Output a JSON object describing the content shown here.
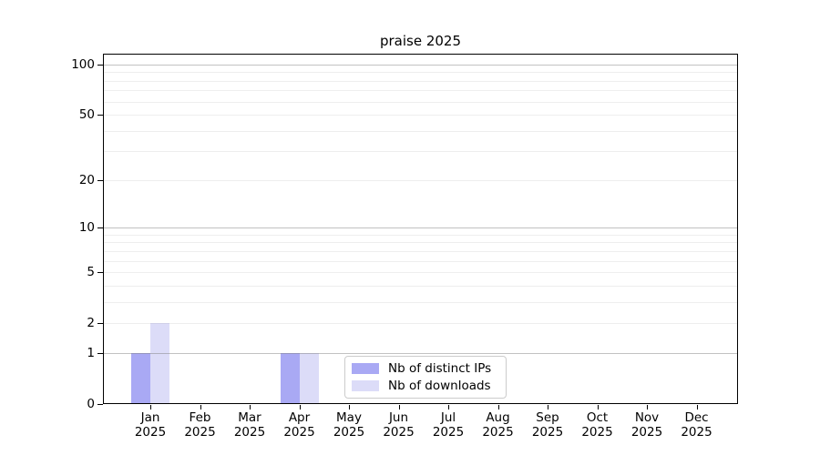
{
  "figure": {
    "title": "praise 2025",
    "background": "#ffffff"
  },
  "chart_data": {
    "type": "bar",
    "title": "praise 2025",
    "scale": "log1p",
    "grid": true,
    "legend_position": "lower center",
    "categories": [
      {
        "label": "Jan",
        "sublabel": "2025"
      },
      {
        "label": "Feb",
        "sublabel": "2025"
      },
      {
        "label": "Mar",
        "sublabel": "2025"
      },
      {
        "label": "Apr",
        "sublabel": "2025"
      },
      {
        "label": "May",
        "sublabel": "2025"
      },
      {
        "label": "Jun",
        "sublabel": "2025"
      },
      {
        "label": "Jul",
        "sublabel": "2025"
      },
      {
        "label": "Aug",
        "sublabel": "2025"
      },
      {
        "label": "Sep",
        "sublabel": "2025"
      },
      {
        "label": "Oct",
        "sublabel": "2025"
      },
      {
        "label": "Nov",
        "sublabel": "2025"
      },
      {
        "label": "Dec",
        "sublabel": "2025"
      }
    ],
    "series": [
      {
        "name": "Nb of distinct IPs",
        "color": "#a9a9f4",
        "values": [
          1,
          0,
          0,
          1,
          0,
          0,
          0,
          0,
          0,
          0,
          0,
          0
        ]
      },
      {
        "name": "Nb of downloads",
        "color": "#dcdcf8",
        "values": [
          2,
          0,
          0,
          1,
          0,
          0,
          0,
          0,
          0,
          0,
          0,
          0
        ]
      }
    ],
    "yticks": [
      0,
      1,
      2,
      5,
      10,
      20,
      50,
      100
    ],
    "major_gridlines": [
      1,
      10,
      100
    ],
    "minor_gridlines": [
      2,
      3,
      4,
      5,
      6,
      7,
      8,
      9,
      20,
      30,
      40,
      50,
      60,
      70,
      80,
      90
    ],
    "ylim": [
      0,
      116
    ],
    "xlabel": "",
    "ylabel": ""
  }
}
